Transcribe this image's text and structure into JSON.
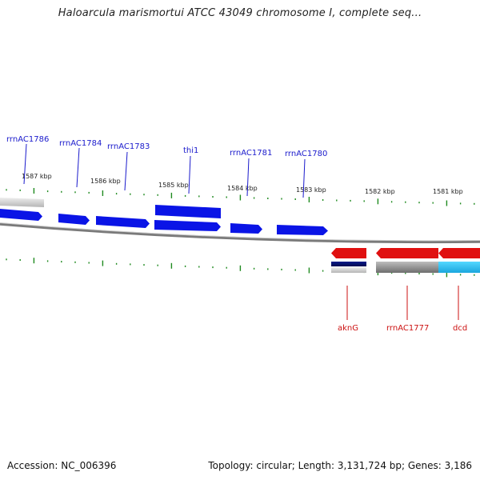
{
  "title": "Haloarcula marismortui ATCC 43049 chromosome I, complete seq...",
  "footer": {
    "accession": "Accession: NC_006396",
    "topology": "Topology: circular; Length: 3,131,724 bp; Genes: 3,186"
  },
  "colors": {
    "forward_gene": "#0a14e6",
    "reverse_gene": "#e01010",
    "forward_label": "#1a1acc",
    "reverse_label": "#cc1111",
    "tick": "#1f8a1f",
    "backbone": "#8a8a8a"
  },
  "scale_labels": [
    "1587 kbp",
    "1586 kbp",
    "1585 kbp",
    "1584 kbp",
    "1583 kbp",
    "1582 kbp",
    "1581 kbp"
  ],
  "forward_labels": [
    "rrnAC1786",
    "rrnAC1784",
    "rrnAC1783",
    "thi1",
    "rrnAC1781",
    "rrnAC1780"
  ],
  "reverse_labels": [
    "aknG",
    "rrnAC1777",
    "dcd"
  ]
}
